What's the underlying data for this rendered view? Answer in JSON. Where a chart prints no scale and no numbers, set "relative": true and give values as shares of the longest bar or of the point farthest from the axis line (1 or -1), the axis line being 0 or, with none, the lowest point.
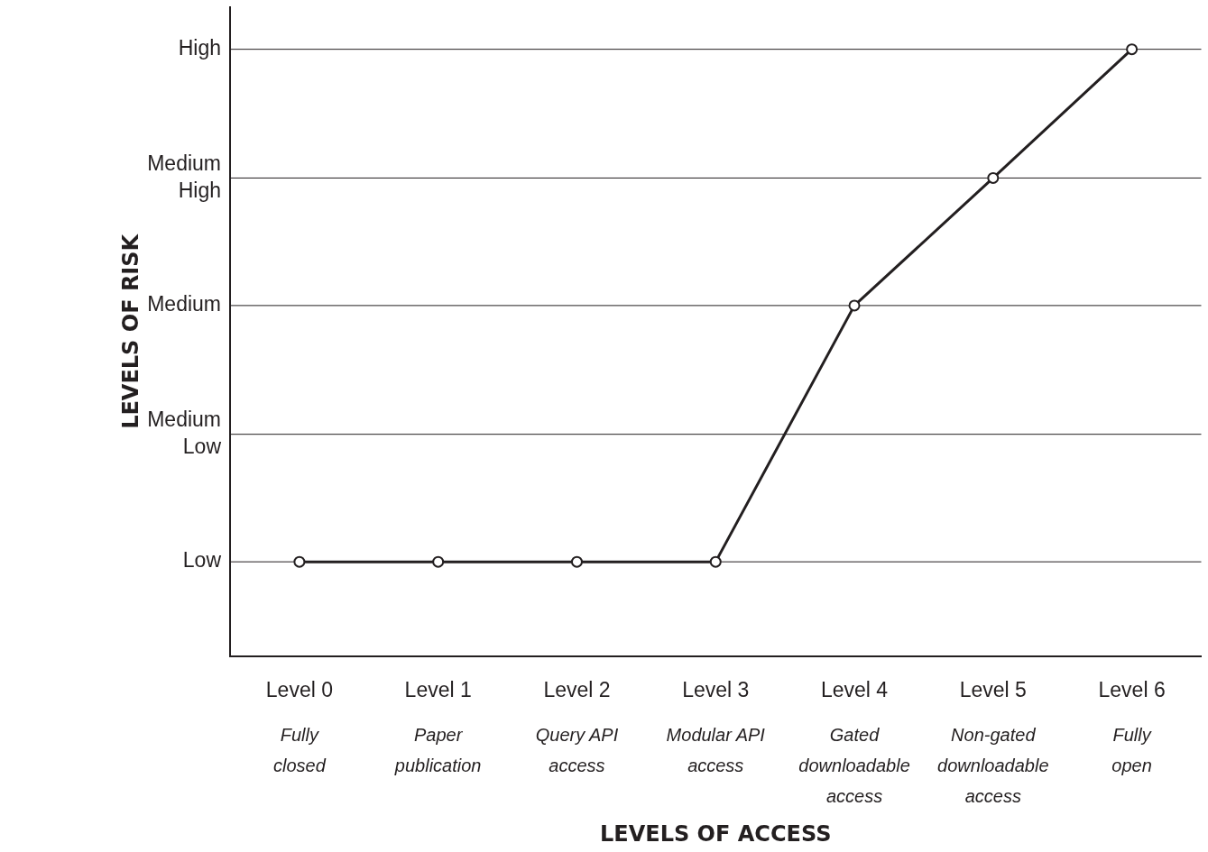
{
  "chart_data": {
    "type": "line",
    "relative": true,
    "xlabel": "LEVELS OF ACCESS",
    "ylabel": "LEVELS OF RISK",
    "categories": [
      "Level 0\nFully\nclosed",
      "Level 1\nPaper\npublication",
      "Level 2\nQuery API\naccess",
      "Level 3\nModular API\naccess",
      "Level 4\nGated\ndownloadable\naccess",
      "Level 5\nNon-gated\ndownloadable\naccess",
      "Level 6\nFully\nopen"
    ],
    "series": [
      {
        "color": "#231f20",
        "values": [
          0.156,
          0.156,
          0.156,
          0.156,
          0.578,
          0.788,
          1
        ]
      }
    ],
    "ref_lines": [
      {
        "axis": "y",
        "value": 0.156,
        "label": "Low",
        "color": "#231f20"
      },
      {
        "axis": "y",
        "value": 0.366,
        "label": "Medium Low",
        "color": "#231f20"
      },
      {
        "axis": "y",
        "value": 0.578,
        "label": "Medium",
        "color": "#231f20"
      },
      {
        "axis": "y",
        "value": 0.788,
        "label": "Medium High",
        "color": "#231f20"
      },
      {
        "axis": "y",
        "value": 1,
        "label": "High",
        "color": "#231f20"
      }
    ],
    "legend": false,
    "marker": "circle",
    "line_style": "solid"
  }
}
